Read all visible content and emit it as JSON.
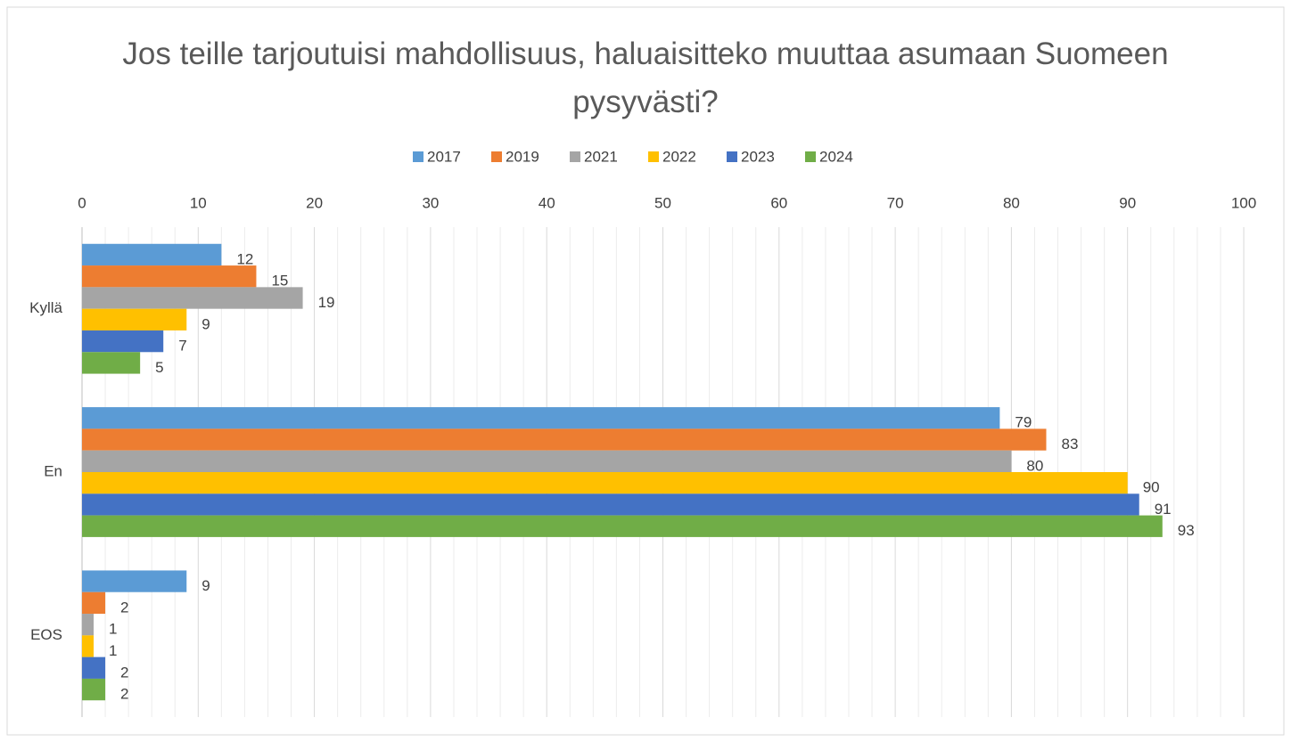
{
  "chart_data": {
    "type": "bar",
    "orientation": "horizontal",
    "title": "Jos teille tarjoutuisi mahdollisuus, haluaisitteko muuttaa asumaan Suomeen pysyvästi?",
    "categories": [
      "Kyllä",
      "En",
      "EOS"
    ],
    "series": [
      {
        "name": "2017",
        "color": "#5b9bd5",
        "values": [
          12,
          79,
          9
        ]
      },
      {
        "name": "2019",
        "color": "#ed7d31",
        "values": [
          15,
          83,
          2
        ]
      },
      {
        "name": "2021",
        "color": "#a5a5a5",
        "values": [
          19,
          80,
          1
        ]
      },
      {
        "name": "2022",
        "color": "#ffc000",
        "values": [
          9,
          90,
          1
        ]
      },
      {
        "name": "2023",
        "color": "#4472c4",
        "values": [
          7,
          91,
          2
        ]
      },
      {
        "name": "2024",
        "color": "#70ad47",
        "values": [
          5,
          93,
          2
        ]
      }
    ],
    "xlim": [
      0,
      100
    ],
    "xticks": [
      0,
      10,
      20,
      30,
      40,
      50,
      60,
      70,
      80,
      90,
      100
    ],
    "xminor": [
      2,
      4,
      6,
      8,
      12,
      14,
      16,
      18,
      22,
      24,
      26,
      28,
      32,
      34,
      36,
      38,
      42,
      44,
      46,
      48,
      52,
      54,
      56,
      58,
      62,
      64,
      66,
      68,
      72,
      74,
      76,
      78,
      82,
      84,
      86,
      88,
      92,
      94,
      96,
      98
    ],
    "grid": true,
    "legend": "top"
  }
}
